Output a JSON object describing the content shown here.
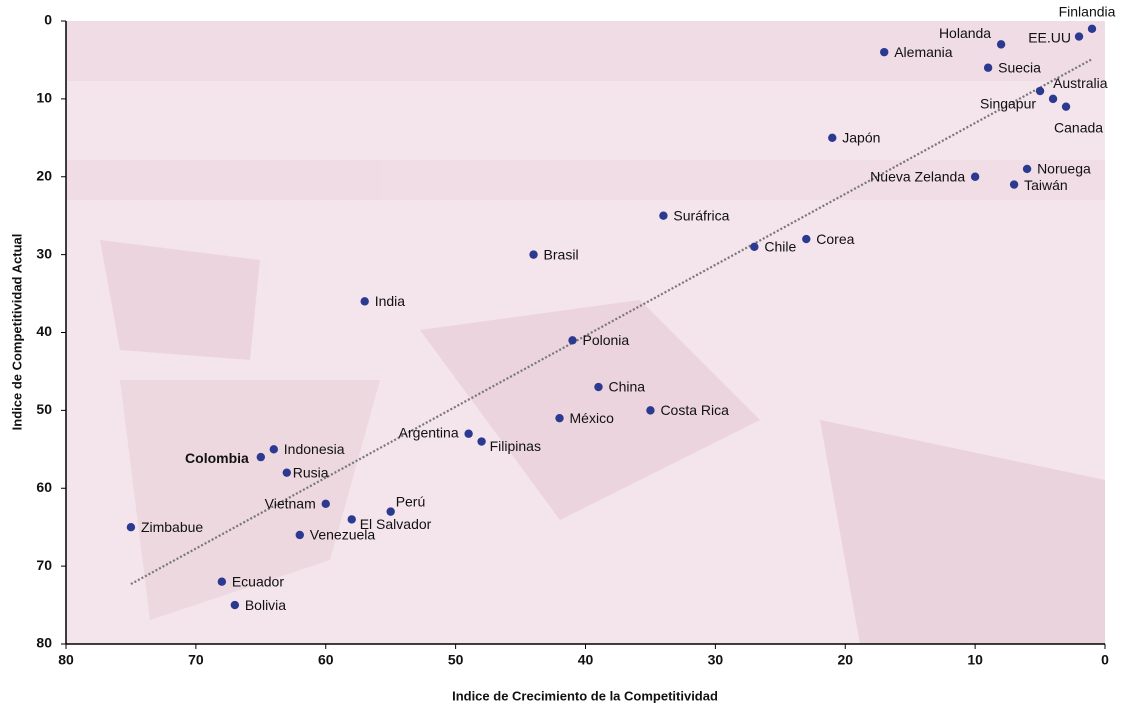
{
  "chart_data": {
    "type": "scatter",
    "xlabel": "Indice de Crecimiento de la Competitividad",
    "ylabel": "Indice de Competitividad Actual",
    "xlim": [
      80,
      0
    ],
    "ylim": [
      0,
      80
    ],
    "xticks": [
      80,
      70,
      60,
      50,
      40,
      30,
      20,
      10,
      0
    ],
    "yticks": [
      0,
      10,
      20,
      30,
      40,
      50,
      60,
      70,
      80
    ],
    "color": "#2b3990",
    "series": [
      {
        "labels": [
          "Finlandia",
          "EE.UU",
          "Holanda",
          "Alemania",
          "Suecia",
          "Australia",
          "Singapur",
          "Canada",
          "Japón",
          "Noruega",
          "Nueva Zelanda",
          "Taiwán",
          "Suráfrica",
          "Corea",
          "Chile",
          "Brasil",
          "India",
          "Polonia",
          "China",
          "Costa Rica",
          "México",
          "Argentina",
          "Filipinas",
          "Indonesia",
          "Colombia",
          "Rusia",
          "Vietnam",
          "Perú",
          "El Salvador",
          "Venezuela",
          "Zimbabue",
          "Ecuador",
          "Bolivia"
        ],
        "x": [
          1,
          2,
          8,
          17,
          9,
          5,
          4,
          3,
          21,
          6,
          10,
          7,
          34,
          23,
          27,
          44,
          57,
          41,
          39,
          35,
          42,
          49,
          48,
          64,
          65,
          63,
          60,
          55,
          58,
          62,
          75,
          68,
          67
        ],
        "values": [
          1,
          2,
          3,
          4,
          6,
          9,
          10,
          11,
          15,
          19,
          20,
          21,
          25,
          28,
          29,
          30,
          36,
          41,
          47,
          50,
          51,
          53,
          54,
          55,
          56,
          58,
          62,
          63,
          64,
          66,
          65,
          72,
          75
        ]
      }
    ],
    "trendline": {
      "x": [
        75,
        1
      ],
      "values": [
        72.3,
        4.9
      ],
      "color": "#777777"
    }
  }
}
